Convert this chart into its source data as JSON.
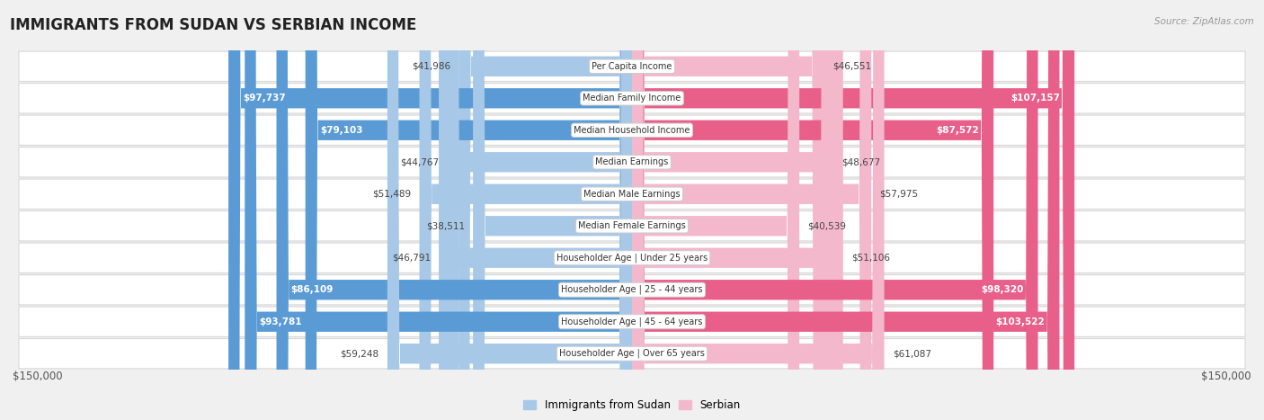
{
  "title": "IMMIGRANTS FROM SUDAN VS SERBIAN INCOME",
  "source": "Source: ZipAtlas.com",
  "categories": [
    "Per Capita Income",
    "Median Family Income",
    "Median Household Income",
    "Median Earnings",
    "Median Male Earnings",
    "Median Female Earnings",
    "Householder Age | Under 25 years",
    "Householder Age | 25 - 44 years",
    "Householder Age | 45 - 64 years",
    "Householder Age | Over 65 years"
  ],
  "sudan_values": [
    41986,
    97737,
    79103,
    44767,
    51489,
    38511,
    46791,
    86109,
    93781,
    59248
  ],
  "serbian_values": [
    46551,
    107157,
    87572,
    48677,
    57975,
    40539,
    51106,
    98320,
    103522,
    61087
  ],
  "sudan_color_light": "#a8c8e8",
  "sudan_color_dark": "#5b9bd5",
  "serbian_color_light": "#f4b8cc",
  "serbian_color_dark": "#e8608a",
  "sudan_dark_threshold": 70000,
  "serbian_dark_threshold": 70000,
  "max_value": 150000,
  "bg_color": "#f0f0f0",
  "row_bg_color": "#fafafa",
  "legend_sudan": "Immigrants from Sudan",
  "legend_serbian": "Serbian"
}
